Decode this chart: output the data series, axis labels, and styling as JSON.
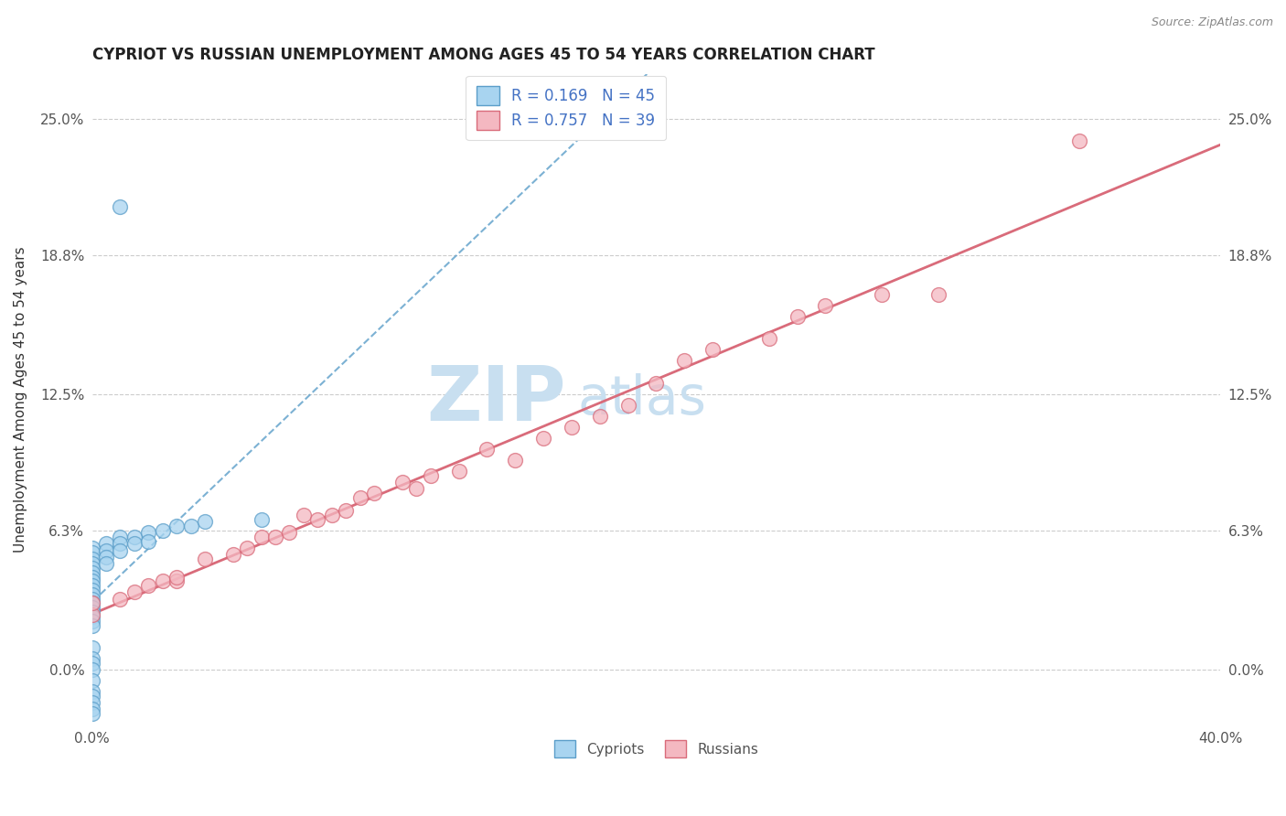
{
  "title": "CYPRIOT VS RUSSIAN UNEMPLOYMENT AMONG AGES 45 TO 54 YEARS CORRELATION CHART",
  "source": "Source: ZipAtlas.com",
  "ylabel": "Unemployment Among Ages 45 to 54 years",
  "xlim": [
    0.0,
    0.4
  ],
  "ylim": [
    -0.025,
    0.27
  ],
  "xticks": [
    0.0,
    0.1,
    0.2,
    0.3,
    0.4
  ],
  "xticklabels": [
    "0.0%",
    "",
    "",
    "",
    "40.0%"
  ],
  "ytick_positions": [
    0.0,
    0.063,
    0.125,
    0.188,
    0.25
  ],
  "ytick_labels": [
    "0.0%",
    "6.3%",
    "12.5%",
    "18.8%",
    "25.0%"
  ],
  "cypriot_color": "#a8d4f0",
  "cypriot_edge_color": "#5b9ec9",
  "russian_color": "#f4b8c1",
  "russian_edge_color": "#d96b7a",
  "trend_cypriot_color": "#5b9ec9",
  "trend_russian_color": "#d96b7a",
  "R_cypriot": 0.169,
  "N_cypriot": 45,
  "R_russian": 0.757,
  "N_russian": 39,
  "watermark_zip": "ZIP",
  "watermark_atlas": "atlas",
  "watermark_color": "#c8dff0",
  "cypriot_points_x": [
    0.0,
    0.0,
    0.0,
    0.0,
    0.0,
    0.0,
    0.0,
    0.0,
    0.0,
    0.0,
    0.0,
    0.0,
    0.0,
    0.0,
    0.0,
    0.0,
    0.0,
    0.0,
    0.0,
    0.0,
    0.0,
    0.0,
    0.0,
    0.0,
    0.0,
    0.0,
    0.0,
    0.0,
    0.005,
    0.005,
    0.005,
    0.005,
    0.01,
    0.01,
    0.01,
    0.015,
    0.015,
    0.02,
    0.02,
    0.025,
    0.03,
    0.035,
    0.04,
    0.06,
    0.01
  ],
  "cypriot_points_y": [
    0.055,
    0.053,
    0.05,
    0.048,
    0.046,
    0.044,
    0.042,
    0.04,
    0.038,
    0.036,
    0.034,
    0.032,
    0.03,
    0.028,
    0.026,
    0.024,
    0.022,
    0.02,
    0.01,
    0.005,
    0.003,
    0.0,
    -0.005,
    -0.01,
    -0.012,
    -0.015,
    -0.018,
    -0.02,
    0.057,
    0.054,
    0.051,
    0.048,
    0.06,
    0.057,
    0.054,
    0.06,
    0.057,
    0.062,
    0.058,
    0.063,
    0.065,
    0.065,
    0.067,
    0.068,
    0.21
  ],
  "russian_points_x": [
    0.0,
    0.0,
    0.01,
    0.015,
    0.02,
    0.025,
    0.03,
    0.03,
    0.04,
    0.05,
    0.055,
    0.06,
    0.065,
    0.07,
    0.075,
    0.08,
    0.085,
    0.09,
    0.095,
    0.1,
    0.11,
    0.115,
    0.12,
    0.13,
    0.14,
    0.15,
    0.16,
    0.17,
    0.18,
    0.19,
    0.2,
    0.21,
    0.22,
    0.24,
    0.25,
    0.26,
    0.28,
    0.3,
    0.35
  ],
  "russian_points_y": [
    0.025,
    0.03,
    0.032,
    0.035,
    0.038,
    0.04,
    0.04,
    0.042,
    0.05,
    0.052,
    0.055,
    0.06,
    0.06,
    0.062,
    0.07,
    0.068,
    0.07,
    0.072,
    0.078,
    0.08,
    0.085,
    0.082,
    0.088,
    0.09,
    0.1,
    0.095,
    0.105,
    0.11,
    0.115,
    0.12,
    0.13,
    0.14,
    0.145,
    0.15,
    0.16,
    0.165,
    0.17,
    0.17,
    0.24
  ]
}
